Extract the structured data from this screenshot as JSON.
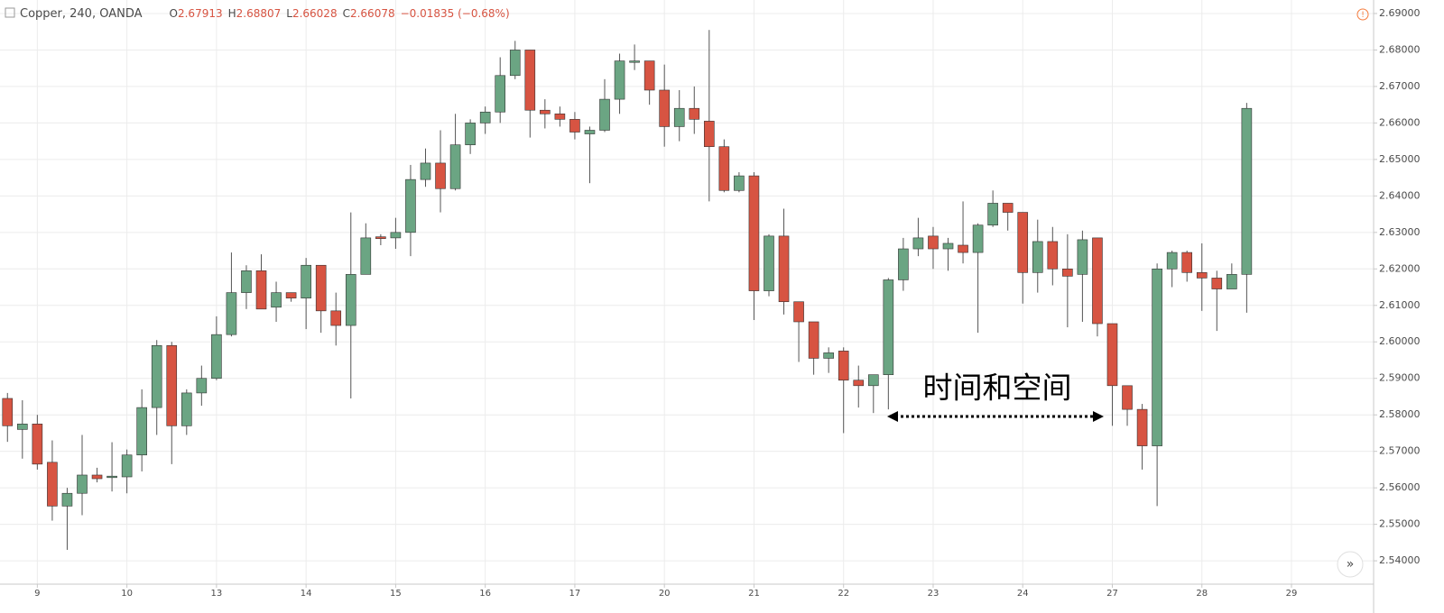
{
  "chart_data": {
    "type": "candlestick",
    "title": "Copper, 240, OANDA",
    "legend": [
      {
        "label": "O",
        "value": 2.67913
      },
      {
        "label": "H",
        "value": 2.68807
      },
      {
        "label": "L",
        "value": 2.66028
      },
      {
        "label": "C",
        "value": 2.66078
      }
    ],
    "change": "−0.01835 (−0.68%)",
    "annotation": "时间和空间",
    "up_color": "#6ba583",
    "down_color": "#d75442",
    "grid": true,
    "ylim": [
      2.5336,
      2.6937
    ],
    "yticks": [
      {
        "value": 2.54,
        "label": "2.54000"
      },
      {
        "value": 2.55,
        "label": "2.55000"
      },
      {
        "value": 2.56,
        "label": "2.56000"
      },
      {
        "value": 2.57,
        "label": "2.57000"
      },
      {
        "value": 2.58,
        "label": "2.58000"
      },
      {
        "value": 2.59,
        "label": "2.59000"
      },
      {
        "value": 2.6,
        "label": "2.60000"
      },
      {
        "value": 2.61,
        "label": "2.61000"
      },
      {
        "value": 2.62,
        "label": "2.62000"
      },
      {
        "value": 2.63,
        "label": "2.63000"
      },
      {
        "value": 2.64,
        "label": "2.64000"
      },
      {
        "value": 2.65,
        "label": "2.65000"
      },
      {
        "value": 2.66,
        "label": "2.66000"
      },
      {
        "value": 2.67,
        "label": "2.67000"
      },
      {
        "value": 2.68,
        "label": "2.68000"
      },
      {
        "value": 2.69,
        "label": "2.69000"
      }
    ],
    "categories": [
      null,
      null,
      "9",
      null,
      null,
      null,
      null,
      null,
      "10",
      null,
      null,
      null,
      null,
      null,
      "13",
      null,
      null,
      null,
      null,
      null,
      "14",
      null,
      null,
      null,
      null,
      null,
      "15",
      null,
      null,
      null,
      null,
      null,
      "16",
      null,
      null,
      null,
      null,
      null,
      "17",
      null,
      null,
      null,
      null,
      null,
      "20",
      null,
      null,
      null,
      null,
      null,
      "21",
      null,
      null,
      null,
      null,
      null,
      "22",
      null,
      null,
      null,
      null,
      null,
      "23",
      null,
      null,
      null,
      null,
      null,
      "24",
      null,
      null,
      null,
      null,
      null,
      "27",
      null,
      null,
      null,
      null,
      null,
      "28",
      null,
      null,
      null,
      null,
      null,
      "29",
      null,
      null,
      null,
      null,
      null
    ],
    "open": [
      2.5845,
      2.576,
      2.5775,
      2.567,
      2.555,
      2.5585,
      2.5635,
      2.5628,
      2.563,
      2.569,
      2.582,
      2.599,
      2.577,
      2.586,
      2.59,
      2.602,
      2.6135,
      2.6195,
      2.6095,
      2.6135,
      2.612,
      2.621,
      2.6085,
      2.6045,
      2.6185,
      2.6288,
      2.6285,
      2.63,
      2.6445,
      2.649,
      2.642,
      2.654,
      2.66,
      2.663,
      2.673,
      2.68,
      2.6635,
      2.6625,
      2.661,
      2.657,
      2.658,
      2.6665,
      2.6766,
      2.677,
      2.669,
      2.659,
      2.664,
      2.6605,
      2.6535,
      2.6415,
      2.6455,
      2.614,
      2.629,
      2.611,
      2.6055,
      2.5955,
      2.5975,
      2.5895,
      2.588,
      2.591,
      2.617,
      2.6255,
      2.629,
      2.6255,
      2.6265,
      2.6245,
      2.632,
      2.638,
      2.6355,
      2.619,
      2.6275,
      2.62,
      2.6185,
      2.6285,
      2.605,
      2.588,
      2.5815,
      2.5715,
      2.62,
      2.6245,
      2.619,
      2.6175,
      2.6145,
      2.6185,
      null,
      null,
      null,
      null,
      null,
      null,
      null,
      null
    ],
    "high": [
      2.586,
      2.584,
      2.58,
      2.573,
      2.56,
      2.5745,
      2.5655,
      2.5725,
      2.5705,
      2.587,
      2.6005,
      2.6,
      2.587,
      2.5935,
      2.607,
      2.6245,
      2.621,
      2.624,
      2.6165,
      2.6135,
      2.623,
      2.621,
      2.6135,
      2.6355,
      2.6325,
      2.6295,
      2.634,
      2.6485,
      2.653,
      2.658,
      2.6625,
      2.661,
      2.6645,
      2.678,
      2.6825,
      2.68,
      2.6665,
      2.6645,
      2.663,
      2.659,
      2.672,
      2.679,
      2.6815,
      2.677,
      2.676,
      2.669,
      2.67,
      2.6855,
      2.6555,
      2.6465,
      2.6465,
      2.6295,
      2.6365,
      2.611,
      2.6055,
      2.5985,
      2.5985,
      2.5935,
      2.591,
      2.6175,
      2.6285,
      2.634,
      2.6315,
      2.6285,
      2.6385,
      2.6325,
      2.6415,
      2.638,
      2.6355,
      2.6335,
      2.6315,
      2.6295,
      2.6305,
      2.6285,
      2.605,
      2.588,
      2.583,
      2.6215,
      2.625,
      2.625,
      2.627,
      2.6195,
      2.6215,
      2.6655,
      null,
      null,
      null,
      null,
      null,
      null,
      null,
      null
    ],
    "low": [
      2.5726,
      2.568,
      2.565,
      2.551,
      2.543,
      2.5525,
      2.5615,
      2.559,
      2.5585,
      2.5645,
      2.5745,
      2.5665,
      2.5745,
      2.5825,
      2.5895,
      2.6015,
      2.609,
      2.609,
      2.6055,
      2.611,
      2.6035,
      2.6025,
      2.599,
      2.5845,
      2.6185,
      2.6265,
      2.6255,
      2.6235,
      2.6425,
      2.6355,
      2.6415,
      2.6515,
      2.657,
      2.66,
      2.672,
      2.656,
      2.6585,
      2.659,
      2.6555,
      2.6435,
      2.6575,
      2.6625,
      2.6745,
      2.665,
      2.6535,
      2.655,
      2.657,
      2.6385,
      2.641,
      2.641,
      2.606,
      2.6125,
      2.6075,
      2.5945,
      2.591,
      2.5915,
      2.575,
      2.582,
      2.5805,
      2.5815,
      2.614,
      2.6235,
      2.62,
      2.6195,
      2.6215,
      2.6025,
      2.6315,
      2.6305,
      2.6105,
      2.6135,
      2.6155,
      2.604,
      2.6055,
      2.6015,
      2.577,
      2.577,
      2.565,
      2.555,
      2.615,
      2.6165,
      2.6085,
      2.603,
      2.6145,
      2.608,
      null,
      null,
      null,
      null,
      null,
      null,
      null,
      null
    ],
    "close": [
      2.577,
      2.5775,
      2.5665,
      2.555,
      2.5585,
      2.5635,
      2.5625,
      2.5632,
      2.569,
      2.582,
      2.599,
      2.577,
      2.586,
      2.59,
      2.602,
      2.6135,
      2.6195,
      2.609,
      2.6135,
      2.612,
      2.621,
      2.6085,
      2.6045,
      2.6185,
      2.6285,
      2.6283,
      2.63,
      2.6445,
      2.649,
      2.642,
      2.654,
      2.66,
      2.663,
      2.673,
      2.68,
      2.6635,
      2.6625,
      2.661,
      2.6575,
      2.658,
      2.6665,
      2.677,
      2.677,
      2.669,
      2.659,
      2.664,
      2.661,
      2.6535,
      2.6415,
      2.6455,
      2.614,
      2.629,
      2.611,
      2.6055,
      2.5955,
      2.597,
      2.5895,
      2.588,
      2.591,
      2.617,
      2.6255,
      2.6285,
      2.6255,
      2.627,
      2.6245,
      2.632,
      2.638,
      2.6355,
      2.619,
      2.6275,
      2.62,
      2.618,
      2.628,
      2.605,
      2.588,
      2.5815,
      2.5715,
      2.62,
      2.6245,
      2.619,
      2.6175,
      2.6145,
      2.6185,
      2.664,
      null,
      null,
      null,
      null,
      null,
      null,
      null,
      null
    ]
  }
}
